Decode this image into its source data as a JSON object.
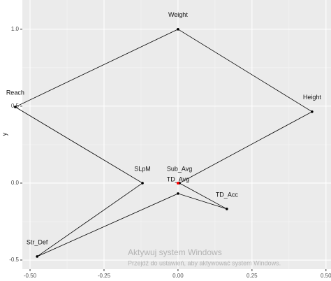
{
  "chart_data": {
    "type": "path",
    "ylabel": "y",
    "points": [
      {
        "label": "Height",
        "x": 0.453,
        "y": 0.464
      },
      {
        "label": "Weight",
        "x": 0,
        "y": 1.0
      },
      {
        "label": "Reach",
        "x": -0.55,
        "y": 0.495
      },
      {
        "label": "SLpM",
        "x": -0.12,
        "y": 0.0
      },
      {
        "label": "Str_Def",
        "x": -0.476,
        "y": -0.477
      },
      {
        "label": "TD_Avg",
        "x": 0,
        "y": -0.068
      },
      {
        "label": "TD_Acc",
        "x": 0.165,
        "y": -0.168
      },
      {
        "label": "Sub_Avg",
        "x": 0.005,
        "y": 0.0
      }
    ],
    "closed": true,
    "line_color": "#000000",
    "highlight_point": {
      "x": 0,
      "y": 0,
      "color": "#ff0000"
    },
    "xlim": [
      -0.526,
      0.517
    ],
    "ylim": [
      -0.559,
      1.19
    ],
    "xticks": [
      {
        "value": -0.5,
        "label": "-0.50"
      },
      {
        "value": -0.25,
        "label": "-0.25"
      },
      {
        "value": 0,
        "label": "0.00"
      },
      {
        "value": 0.25,
        "label": "0.25"
      },
      {
        "value": 0.5,
        "label": "0.50"
      }
    ],
    "yticks": [
      {
        "value": -0.5,
        "label": "-0.5"
      },
      {
        "value": 0,
        "label": "0.0"
      },
      {
        "value": 0.5,
        "label": "0.5"
      },
      {
        "value": 1,
        "label": "1.0"
      }
    ],
    "grid": true,
    "watermark": [
      "Aktywuj system Windows",
      "Przejdź do ustawień, aby aktywować system Windows."
    ]
  }
}
